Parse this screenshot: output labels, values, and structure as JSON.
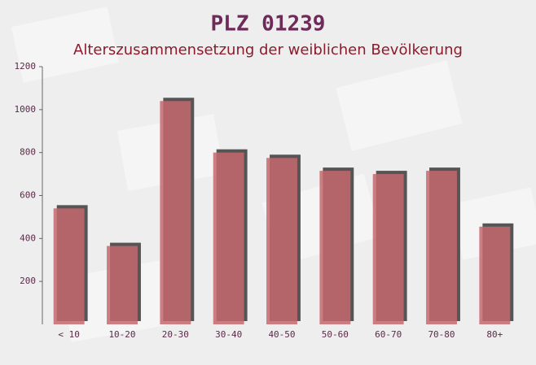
{
  "chart_data": {
    "type": "bar",
    "title": "PLZ 01239",
    "subtitle": "Alterszusammensetzung der weiblichen Bevölkerung",
    "categories": [
      "< 10",
      "10-20",
      "20-30",
      "30-40",
      "40-50",
      "50-60",
      "60-70",
      "70-80",
      "80+"
    ],
    "values": [
      540,
      365,
      1040,
      800,
      775,
      715,
      700,
      715,
      455
    ],
    "color": "#c4686f",
    "ylim": [
      0,
      1200
    ],
    "yticks": [
      200,
      400,
      600,
      800,
      1000,
      1200
    ]
  }
}
